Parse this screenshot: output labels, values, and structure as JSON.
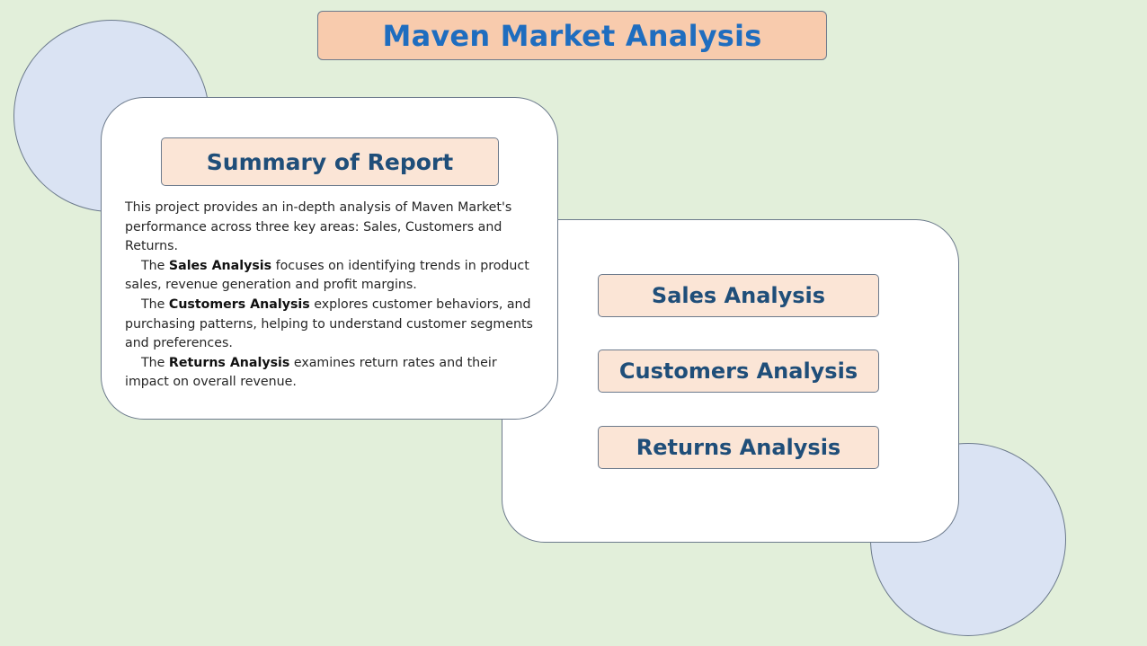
{
  "page": {
    "title": "Maven Market Analysis"
  },
  "summary": {
    "heading": "Summary of Report",
    "intro": "This project provides an in-depth analysis of Maven Market's performance across three key areas: Sales, Customers and Returns.",
    "sales_prefix": "The ",
    "sales_bold": "Sales Analysis",
    "sales_rest": " focuses on identifying trends in product sales, revenue generation and profit margins.",
    "customers_prefix": "The ",
    "customers_bold": "Customers Analysis",
    "customers_rest": " explores customer behaviors, and purchasing patterns, helping to understand customer segments and preferences.",
    "returns_prefix": "The ",
    "returns_bold": "Returns Analysis",
    "returns_rest": " examines return rates and their impact on overall revenue."
  },
  "nav": {
    "sales_label": "Sales Analysis",
    "customers_label": "Customers Analysis",
    "returns_label": "Returns Analysis"
  },
  "colors": {
    "background": "#e2efda",
    "title_fill": "#f8cbad",
    "title_text": "#1f6dbf",
    "button_fill": "#fbe5d6",
    "button_text": "#1f4e79",
    "circle_fill": "#dae3f3",
    "card_fill": "#ffffff"
  }
}
